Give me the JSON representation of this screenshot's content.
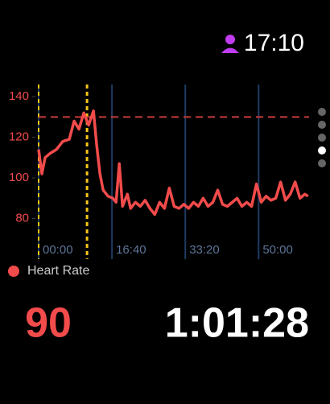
{
  "status": {
    "time": "17:10"
  },
  "chart_data": {
    "type": "line",
    "x": [
      0,
      44,
      88,
      154,
      242,
      330,
      418,
      484,
      550,
      616,
      682,
      748,
      792,
      836,
      880,
      946,
      1012,
      1056,
      1100,
      1144,
      1210,
      1254,
      1320,
      1386,
      1452,
      1518,
      1584,
      1650,
      1716,
      1782,
      1848,
      1914,
      1980,
      2046,
      2112,
      2178,
      2244,
      2310,
      2376,
      2442,
      2508,
      2574,
      2640,
      2706,
      2772,
      2838,
      2904,
      2970,
      3036,
      3102,
      3168,
      3234,
      3300,
      3366,
      3432,
      3498,
      3564,
      3630,
      3674
    ],
    "series": [
      {
        "name": "Heart Rate",
        "color": "#f24b4b",
        "values": [
          114,
          102,
          110,
          112,
          114,
          118,
          119,
          128,
          124,
          132,
          126,
          133,
          116,
          102,
          94,
          91,
          90,
          88,
          107,
          86,
          92,
          85,
          88,
          86,
          89,
          85,
          82,
          88,
          85,
          95,
          86,
          85,
          87,
          85,
          88,
          86,
          90,
          86,
          88,
          94,
          87,
          86,
          88,
          90,
          86,
          88,
          86,
          97,
          88,
          91,
          89,
          90,
          98,
          89,
          92,
          98,
          90,
          92,
          91
        ]
      }
    ],
    "xlim": [
      0,
      3688
    ],
    "xticks": [
      {
        "value": 0,
        "label": "00:00"
      },
      {
        "value": 1000,
        "label": "16:40"
      },
      {
        "value": 2000,
        "label": "33:20"
      },
      {
        "value": 3000,
        "label": "50:00"
      }
    ],
    "ylim": [
      60,
      146
    ],
    "yticks": [
      80,
      100,
      120,
      140
    ],
    "reference_line": 130,
    "markers": [
      0,
      660
    ]
  },
  "readout": {
    "heart_rate": "90",
    "elapsed": "1:01:28"
  }
}
